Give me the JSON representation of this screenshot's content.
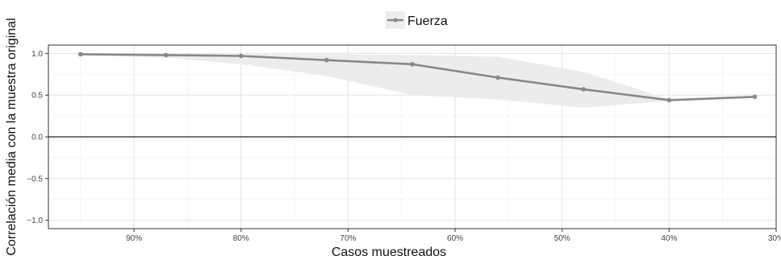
{
  "chart_data": {
    "type": "line",
    "title": "",
    "xlabel": "Casos muestreados",
    "ylabel": "Correlación media con la muestra original",
    "x_reversed": true,
    "xlim": [
      98.0,
      30.0
    ],
    "ylim": [
      -1.1,
      1.1
    ],
    "x_ticks": [
      90,
      80,
      70,
      60,
      50,
      40,
      30
    ],
    "x_tick_labels": [
      "90%",
      "80%",
      "70%",
      "60%",
      "50%",
      "40%",
      "30%"
    ],
    "y_ticks": [
      1.0,
      0.5,
      0.0,
      -0.5,
      -1.0
    ],
    "y_tick_labels": [
      "1.0",
      "0.5",
      "0.0",
      "−0.5",
      "−1.0"
    ],
    "reference_line_y": 0.0,
    "grid": true,
    "legend_position": "top",
    "series": [
      {
        "name": "Fuerza",
        "color": "#888888",
        "band_color": "#ececec",
        "x": [
          95,
          87,
          80,
          72,
          64,
          56,
          48,
          40,
          32
        ],
        "y": [
          0.99,
          0.98,
          0.97,
          0.92,
          0.87,
          0.71,
          0.57,
          0.44,
          0.48
        ],
        "ci_lower": [
          0.98,
          0.95,
          0.87,
          0.73,
          0.5,
          0.45,
          0.35,
          0.43,
          0.47
        ],
        "ci_upper": [
          1.0,
          1.0,
          0.99,
          0.99,
          0.98,
          0.96,
          0.78,
          0.45,
          0.49
        ]
      }
    ]
  }
}
